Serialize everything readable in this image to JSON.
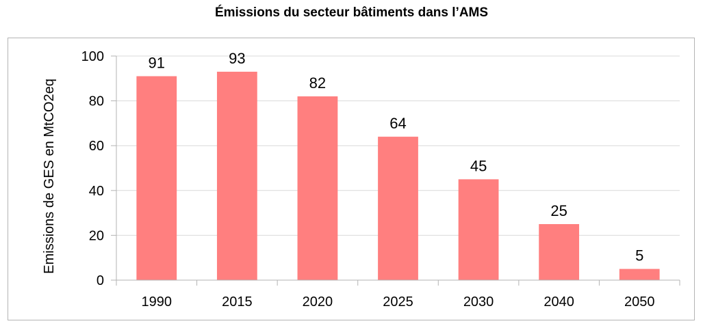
{
  "chart_data": {
    "type": "bar",
    "title": "Émissions du secteur bâtiments dans l’AMS",
    "ylabel": "Emissions de GES en MtCO2eq",
    "xlabel": "",
    "categories": [
      "1990",
      "2015",
      "2020",
      "2025",
      "2030",
      "2040",
      "2050"
    ],
    "values": [
      91,
      93,
      82,
      64,
      45,
      25,
      5
    ],
    "data_labels": [
      "91",
      "93",
      "82",
      "64",
      "45",
      "25",
      "5"
    ],
    "ylim": [
      0,
      100
    ],
    "yticks": [
      "0",
      "20",
      "40",
      "60",
      "80",
      "100"
    ],
    "grid": true,
    "bar_color": "#ff7f7f",
    "grid_color": "#d9d9d9"
  }
}
